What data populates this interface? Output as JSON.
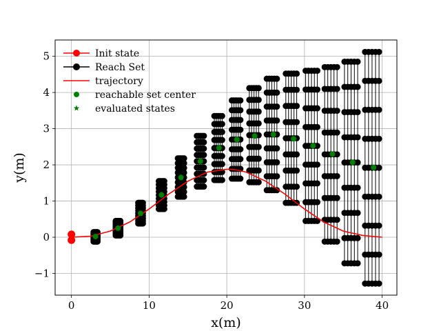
{
  "chart_data": {
    "type": "scatter",
    "xlabel": "x(m)",
    "ylabel": "y(m)",
    "xlim": [
      -2.1,
      41.9
    ],
    "ylim": [
      -1.6,
      5.45
    ],
    "xticks": [
      0,
      10,
      20,
      30,
      40
    ],
    "yticks": [
      -1,
      0,
      1,
      2,
      3,
      4,
      5
    ],
    "xtick_labels": [
      "0",
      "10",
      "20",
      "30",
      "40"
    ],
    "ytick_labels": [
      "−1",
      "0",
      "1",
      "2",
      "3",
      "4",
      "5"
    ],
    "grid": true,
    "legend_position": "upper-left",
    "legend": [
      {
        "label": "Init state",
        "style": "line-marker",
        "color": "#ff0000"
      },
      {
        "label": "Reach Set",
        "style": "line-marker",
        "color": "#000000"
      },
      {
        "label": "trajectory",
        "style": "line",
        "color": "#ff0000"
      },
      {
        "label": "reachable set center",
        "style": "marker",
        "color": "#008000"
      },
      {
        "label": "evaluated states",
        "style": "star",
        "color": "#008000"
      }
    ],
    "colors": {
      "init": "#ff0000",
      "reach": "#000000",
      "trajectory": "#ff0000",
      "center": "#008000",
      "grid": "#b0b0b0"
    },
    "init_state": {
      "x": [
        0,
        0
      ],
      "y": [
        -0.08,
        0.08
      ]
    },
    "trajectory": {
      "x": [
        0,
        2.5,
        5,
        7.5,
        10,
        12.5,
        15,
        17.5,
        20,
        21,
        22.5,
        25,
        27.5,
        30,
        32.5,
        35,
        37.5,
        40
      ],
      "y": [
        0,
        0.03,
        0.17,
        0.42,
        0.78,
        1.19,
        1.55,
        1.8,
        1.88,
        1.87,
        1.8,
        1.55,
        1.19,
        0.78,
        0.42,
        0.17,
        0.05,
        0
      ]
    },
    "reach_set_columns": [
      {
        "x": 3.1,
        "y_min": -0.12,
        "y_max": 0.14,
        "spread": 0.25
      },
      {
        "x": 6.0,
        "y_min": 0.05,
        "y_max": 0.45,
        "spread": 0.3
      },
      {
        "x": 8.9,
        "y_min": 0.38,
        "y_max": 0.95,
        "spread": 0.3
      },
      {
        "x": 11.6,
        "y_min": 0.78,
        "y_max": 1.55,
        "spread": 0.35
      },
      {
        "x": 14.1,
        "y_min": 1.12,
        "y_max": 2.18,
        "spread": 0.4
      },
      {
        "x": 16.6,
        "y_min": 1.4,
        "y_max": 2.8,
        "spread": 0.45
      },
      {
        "x": 18.9,
        "y_min": 1.58,
        "y_max": 3.35,
        "spread": 0.5
      },
      {
        "x": 21.2,
        "y_min": 1.62,
        "y_max": 3.78,
        "spread": 0.55
      },
      {
        "x": 23.5,
        "y_min": 1.52,
        "y_max": 4.12,
        "spread": 0.6
      },
      {
        "x": 25.8,
        "y_min": 1.3,
        "y_max": 4.38,
        "spread": 0.65
      },
      {
        "x": 28.3,
        "y_min": 0.95,
        "y_max": 4.52,
        "spread": 0.7
      },
      {
        "x": 30.9,
        "y_min": 0.45,
        "y_max": 4.6,
        "spread": 0.75
      },
      {
        "x": 33.4,
        "y_min": -0.12,
        "y_max": 4.7,
        "spread": 0.8
      },
      {
        "x": 36.0,
        "y_min": -0.72,
        "y_max": 4.85,
        "spread": 0.85
      },
      {
        "x": 38.7,
        "y_min": -1.28,
        "y_max": 5.12,
        "spread": 0.9
      }
    ],
    "reachable_set_center": {
      "x": [
        3.1,
        6.0,
        8.9,
        11.6,
        14.1,
        16.6,
        19.0,
        21.3,
        23.6,
        26.0,
        28.6,
        31.1,
        33.6,
        36.2,
        38.9
      ],
      "y": [
        0.02,
        0.25,
        0.66,
        1.17,
        1.65,
        2.1,
        2.47,
        2.7,
        2.8,
        2.84,
        2.72,
        2.53,
        2.3,
        2.07,
        1.93
      ]
    },
    "evaluated_states": {
      "x": [
        3.1,
        6.0,
        8.9,
        11.6,
        14.1,
        16.6,
        19.0,
        21.3,
        23.6,
        26.0,
        28.6,
        31.1,
        33.6,
        36.2,
        38.9
      ],
      "y": [
        0.02,
        0.25,
        0.66,
        1.17,
        1.65,
        2.1,
        2.47,
        2.7,
        2.8,
        2.84,
        2.72,
        2.53,
        2.3,
        2.07,
        1.93
      ]
    }
  }
}
